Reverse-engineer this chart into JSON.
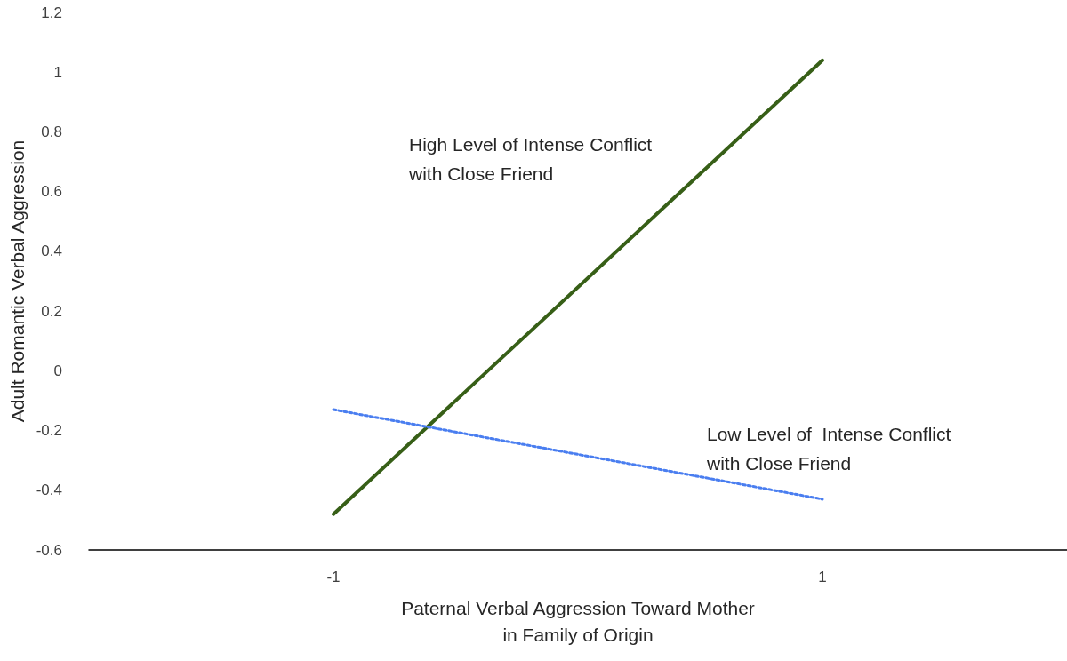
{
  "chart_data": {
    "type": "line",
    "xlabel": "Paternal Verbal Aggression Toward Mother\nin Family of Origin",
    "ylabel": "Adult Romantic Verbal Aggression",
    "x": [
      -1,
      1
    ],
    "series": [
      {
        "color": "#375f17",
        "values": [
          -0.48,
          1.04
        ],
        "line_style": "solid"
      },
      {
        "color": "#4a7ef0",
        "values": [
          -0.13,
          -0.43
        ],
        "line_style": "dotted"
      }
    ],
    "xlim": [
      -2,
      2
    ],
    "xticks": [
      -1,
      1
    ],
    "ylim": [
      -0.6,
      1.2
    ],
    "yticks": [
      -0.6,
      -0.4,
      -0.2,
      0,
      0.2,
      0.4,
      0.6,
      0.8,
      1,
      1.2
    ],
    "annotations": [
      "High Level of Intense Conflict\nwith Close Friend",
      "Low Level of  Intense Conflict\nwith Close Friend"
    ],
    "grid": false,
    "marker": "none"
  }
}
